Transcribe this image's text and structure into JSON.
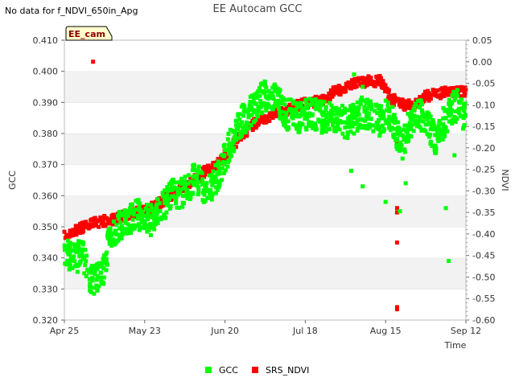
{
  "note": "No data for f_NDVI_650in_Apg",
  "chart_data": {
    "type": "scatter",
    "title": "EE Autocam GCC",
    "site_label": "EE_cam",
    "xlabel": "Time",
    "ylabel_left": "GCC",
    "ylabel_right": "NDVI",
    "x_ticks": [
      "Apr 25",
      "May 23",
      "Jun 20",
      "Jul 18",
      "Aug 15",
      "Sep 12"
    ],
    "x_tick_days": [
      0,
      28,
      56,
      84,
      112,
      140
    ],
    "xlim_days": [
      0,
      140
    ],
    "y_left_ticks": [
      "0.320",
      "0.330",
      "0.340",
      "0.350",
      "0.360",
      "0.370",
      "0.380",
      "0.390",
      "0.400",
      "0.410"
    ],
    "ylim_left": [
      0.32,
      0.41
    ],
    "y_right_ticks": [
      "0.05",
      "0.00",
      "-0.05",
      "-0.10",
      "-0.15",
      "-0.20",
      "-0.25",
      "-0.30",
      "-0.35",
      "-0.40",
      "-0.45",
      "-0.50",
      "-0.55",
      "-0.60"
    ],
    "ylim_right": [
      -0.6,
      0.05
    ],
    "grid": "alternating horizontal bands",
    "legend": "bottom-center",
    "series": [
      {
        "name": "GCC",
        "axis": "left",
        "color": "#00ff00",
        "marker": "square",
        "spread": 0.005,
        "x": [
          0,
          2,
          4,
          6,
          8,
          10,
          12,
          14,
          16,
          18,
          20,
          22,
          24,
          26,
          28,
          30,
          32,
          34,
          36,
          38,
          40,
          42,
          44,
          46,
          48,
          50,
          52,
          54,
          56,
          58,
          60,
          62,
          64,
          66,
          68,
          70,
          72,
          74,
          76,
          78,
          80,
          82,
          84,
          86,
          88,
          90,
          92,
          94,
          96,
          98,
          100,
          102,
          104,
          106,
          108,
          110,
          112,
          114,
          116,
          118,
          120,
          122,
          124,
          126,
          128,
          130,
          132,
          134,
          136,
          138,
          140
        ],
        "y": [
          0.343,
          0.341,
          0.339,
          0.344,
          0.335,
          0.333,
          0.334,
          0.337,
          0.348,
          0.349,
          0.351,
          0.352,
          0.353,
          0.354,
          0.353,
          0.352,
          0.353,
          0.356,
          0.358,
          0.361,
          0.36,
          0.362,
          0.364,
          0.366,
          0.363,
          0.361,
          0.364,
          0.368,
          0.372,
          0.377,
          0.381,
          0.384,
          0.386,
          0.388,
          0.391,
          0.392,
          0.393,
          0.391,
          0.388,
          0.386,
          0.387,
          0.385,
          0.386,
          0.387,
          0.386,
          0.385,
          0.386,
          0.384,
          0.385,
          0.383,
          0.384,
          0.385,
          0.387,
          0.386,
          0.385,
          0.384,
          0.386,
          0.385,
          0.38,
          0.375,
          0.383,
          0.385,
          0.386,
          0.383,
          0.38,
          0.378,
          0.383,
          0.386,
          0.389,
          0.387,
          0.385
        ],
        "outliers_x": [
          101,
          104,
          112,
          117,
          119,
          121,
          133,
          134,
          136,
          137,
          104,
          100
        ],
        "outliers_y": [
          0.399,
          0.395,
          0.358,
          0.355,
          0.364,
          0.387,
          0.356,
          0.339,
          0.373,
          0.394,
          0.363,
          0.368
        ]
      },
      {
        "name": "SRS_NDVI",
        "axis": "right",
        "color": "#ff0000",
        "marker": "square",
        "spread": 0.012,
        "x": [
          0,
          6,
          10,
          14,
          18,
          22,
          26,
          30,
          34,
          38,
          42,
          46,
          50,
          54,
          58,
          62,
          66,
          70,
          74,
          78,
          82,
          86,
          90,
          94,
          98,
          102,
          106,
          110,
          114,
          118,
          122,
          126,
          130,
          134,
          138,
          140
        ],
        "y": [
          -0.405,
          -0.385,
          -0.375,
          -0.37,
          -0.365,
          -0.355,
          -0.35,
          -0.34,
          -0.325,
          -0.305,
          -0.29,
          -0.27,
          -0.25,
          -0.235,
          -0.2,
          -0.17,
          -0.145,
          -0.13,
          -0.12,
          -0.11,
          -0.1,
          -0.095,
          -0.09,
          -0.07,
          -0.06,
          -0.05,
          -0.045,
          -0.045,
          -0.085,
          -0.1,
          -0.1,
          -0.08,
          -0.075,
          -0.07,
          -0.07,
          -0.07
        ],
        "outliers_x": [
          10,
          116,
          116,
          116,
          116,
          116,
          116
        ],
        "outliers_y": [
          0.0,
          -0.34,
          -0.35,
          -0.42,
          -0.57,
          -0.575,
          -0.19
        ]
      }
    ]
  }
}
